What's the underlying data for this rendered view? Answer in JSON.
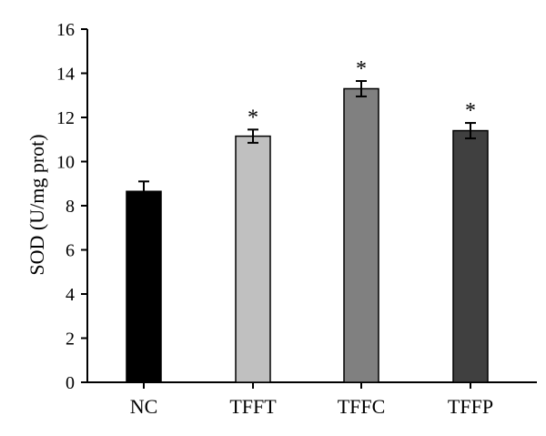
{
  "chart_data": {
    "type": "bar",
    "title": "",
    "xlabel": "",
    "ylabel": "SOD (U/mg prot)",
    "ylim": [
      0,
      16
    ],
    "yticks": [
      0,
      2,
      4,
      6,
      8,
      10,
      12,
      14,
      16
    ],
    "grid": false,
    "categories": [
      "NC",
      "TFFT",
      "TFFC",
      "TFFP"
    ],
    "values": [
      8.65,
      11.15,
      13.3,
      11.4
    ],
    "errors": [
      0.45,
      0.3,
      0.35,
      0.35
    ],
    "significance": [
      "",
      "*",
      "*",
      "*"
    ],
    "colors": [
      "#000000",
      "#c0c0c0",
      "#808080",
      "#404040"
    ]
  }
}
